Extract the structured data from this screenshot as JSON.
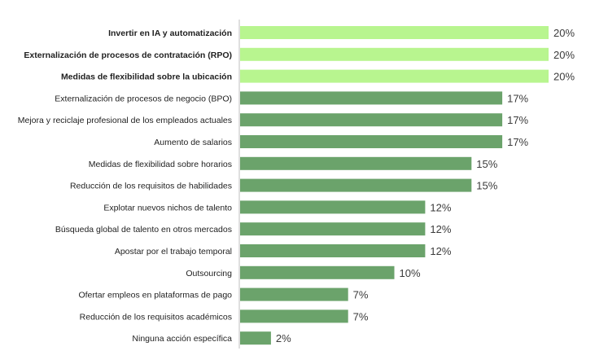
{
  "chart_data": {
    "type": "bar",
    "orientation": "horizontal",
    "categories": [
      "Invertir en IA y automatización",
      "Externalización de procesos de contratación (RPO)",
      "Medidas de flexibilidad sobre la ubicación",
      "Externalización de procesos de negocio (BPO)",
      "Mejora y reciclaje profesional de los empleados actuales",
      "Aumento de salarios",
      "Medidas de flexibilidad sobre horarios",
      "Reducción de los requisitos de habilidades",
      "Explotar nuevos nichos de talento",
      "Búsqueda global de talento en otros mercados",
      "Apostar por el trabajo temporal",
      "Outsourcing",
      "Ofertar empleos en plataformas de pago",
      "Reducción de los requisitos académicos",
      "Ninguna acción específica"
    ],
    "values": [
      20,
      20,
      20,
      17,
      17,
      17,
      15,
      15,
      12,
      12,
      12,
      10,
      7,
      7,
      2
    ],
    "value_labels": [
      "20%",
      "20%",
      "20%",
      "17%",
      "17%",
      "17%",
      "15%",
      "15%",
      "12%",
      "12%",
      "12%",
      "10%",
      "7%",
      "7%",
      "2%"
    ],
    "highlighted": [
      true,
      true,
      true,
      false,
      false,
      false,
      false,
      false,
      false,
      false,
      false,
      false,
      false,
      false,
      false
    ],
    "xlim": [
      0,
      20
    ],
    "grid": false,
    "legend": "none",
    "colors": {
      "highlight": "#b8f58f",
      "default": "#6ba36b",
      "axis": "#bfbfbf",
      "label_text": "#1f1f1f",
      "value_text": "#3b3b3b"
    }
  }
}
